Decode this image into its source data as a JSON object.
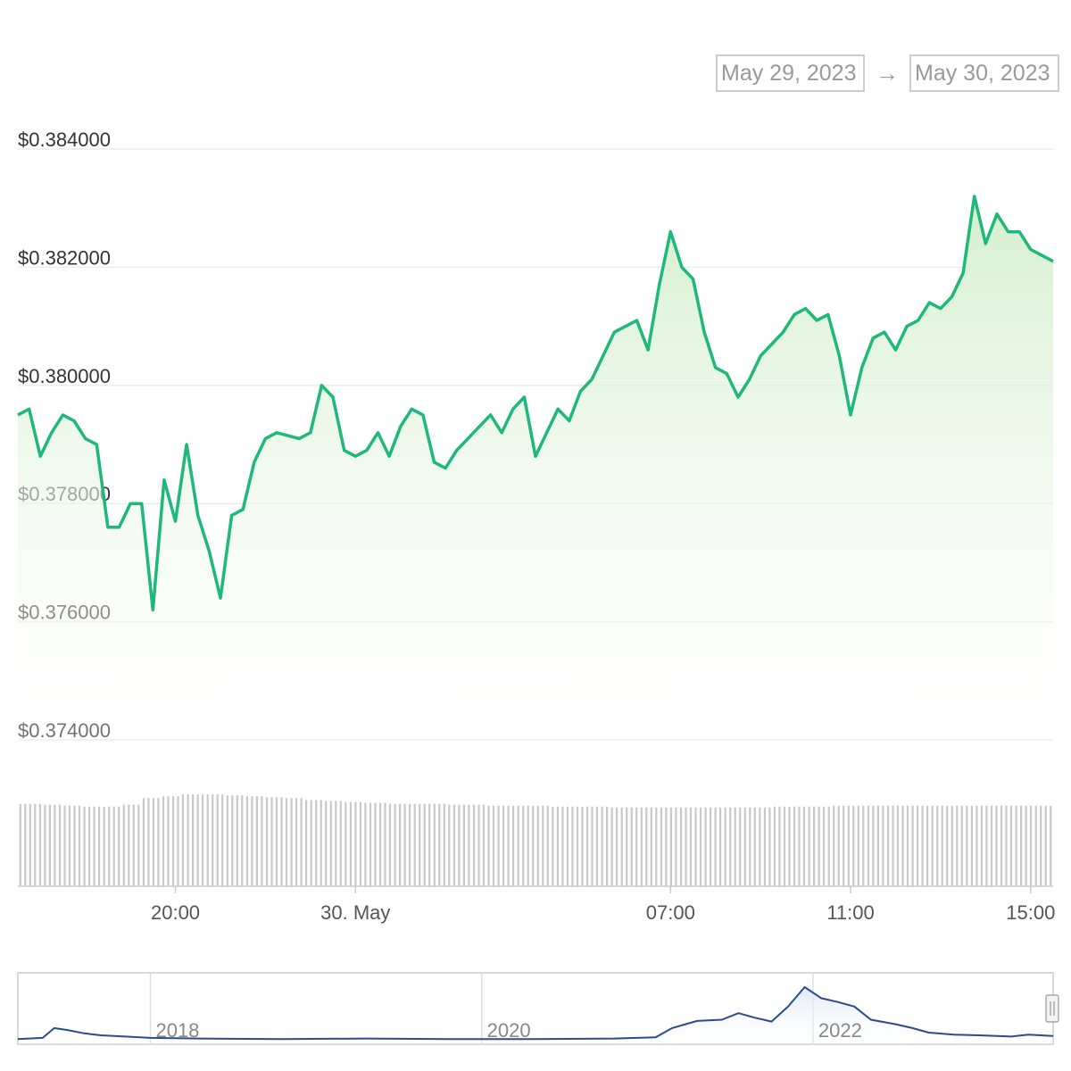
{
  "date_range": {
    "from": "May 29, 2023",
    "separator": "→",
    "to": "May 30, 2023"
  },
  "colors": {
    "line": "#1db87a",
    "area_top": "#d4f0cd",
    "navigator_line": "#2c4a8e",
    "volume_bar": "#c8c8c8"
  },
  "chart_data": {
    "type": "line",
    "title": "",
    "ylabel": "",
    "xlabel": "",
    "ylim": [
      0.374,
      0.384
    ],
    "y_ticks": [
      {
        "value": 0.384,
        "label": "$0.384000"
      },
      {
        "value": 0.382,
        "label": "$0.382000"
      },
      {
        "value": 0.38,
        "label": "$0.380000"
      },
      {
        "value": 0.378,
        "label": "$0.378000"
      },
      {
        "value": 0.376,
        "label": "$0.376000"
      },
      {
        "value": 0.374,
        "label": "$0.374000"
      }
    ],
    "x_range": [
      "2023-05-29T16:30",
      "2023-05-30T15:30"
    ],
    "x_ticks": [
      {
        "time": "2023-05-29T20:00",
        "label": "20:00"
      },
      {
        "time": "2023-05-30T00:00",
        "label": "30. May"
      },
      {
        "time": "2023-05-30T07:00",
        "label": "07:00"
      },
      {
        "time": "2023-05-30T11:00",
        "label": "11:00"
      },
      {
        "time": "2023-05-30T15:00",
        "label": "15:00"
      }
    ],
    "series": [
      {
        "x": [
          "2023-05-29T16:30",
          "2023-05-29T16:45",
          "2023-05-29T17:00",
          "2023-05-29T17:15",
          "2023-05-29T17:30",
          "2023-05-29T17:45",
          "2023-05-29T18:00",
          "2023-05-29T18:15",
          "2023-05-29T18:30",
          "2023-05-29T18:45",
          "2023-05-29T19:00",
          "2023-05-29T19:15",
          "2023-05-29T19:30",
          "2023-05-29T19:45",
          "2023-05-29T20:00",
          "2023-05-29T20:15",
          "2023-05-29T20:30",
          "2023-05-29T20:45",
          "2023-05-29T21:00",
          "2023-05-29T21:15",
          "2023-05-29T21:30",
          "2023-05-29T21:45",
          "2023-05-29T22:00",
          "2023-05-29T22:15",
          "2023-05-29T22:30",
          "2023-05-29T22:45",
          "2023-05-29T23:00",
          "2023-05-29T23:15",
          "2023-05-29T23:30",
          "2023-05-29T23:45",
          "2023-05-30T00:00",
          "2023-05-30T00:15",
          "2023-05-30T00:30",
          "2023-05-30T00:45",
          "2023-05-30T01:00",
          "2023-05-30T01:15",
          "2023-05-30T01:30",
          "2023-05-30T01:45",
          "2023-05-30T02:00",
          "2023-05-30T02:15",
          "2023-05-30T02:30",
          "2023-05-30T02:45",
          "2023-05-30T03:00",
          "2023-05-30T03:15",
          "2023-05-30T03:30",
          "2023-05-30T03:45",
          "2023-05-30T04:00",
          "2023-05-30T04:15",
          "2023-05-30T04:30",
          "2023-05-30T04:45",
          "2023-05-30T05:00",
          "2023-05-30T05:15",
          "2023-05-30T05:30",
          "2023-05-30T05:45",
          "2023-05-30T06:00",
          "2023-05-30T06:15",
          "2023-05-30T06:30",
          "2023-05-30T06:45",
          "2023-05-30T07:00",
          "2023-05-30T07:15",
          "2023-05-30T07:30",
          "2023-05-30T07:45",
          "2023-05-30T08:00",
          "2023-05-30T08:15",
          "2023-05-30T08:30",
          "2023-05-30T08:45",
          "2023-05-30T09:00",
          "2023-05-30T09:15",
          "2023-05-30T09:30",
          "2023-05-30T09:45",
          "2023-05-30T10:00",
          "2023-05-30T10:15",
          "2023-05-30T10:30",
          "2023-05-30T10:45",
          "2023-05-30T11:00",
          "2023-05-30T11:15",
          "2023-05-30T11:30",
          "2023-05-30T11:45",
          "2023-05-30T12:00",
          "2023-05-30T12:15",
          "2023-05-30T12:30",
          "2023-05-30T12:45",
          "2023-05-30T13:00",
          "2023-05-30T13:15",
          "2023-05-30T13:30",
          "2023-05-30T13:45",
          "2023-05-30T14:00",
          "2023-05-30T14:15",
          "2023-05-30T14:30",
          "2023-05-30T14:45",
          "2023-05-30T15:00",
          "2023-05-30T15:15",
          "2023-05-30T15:30"
        ],
        "values": [
          0.3795,
          0.3796,
          0.3788,
          0.3792,
          0.3795,
          0.3794,
          0.3791,
          0.379,
          0.3776,
          0.3776,
          0.378,
          0.378,
          0.3762,
          0.3784,
          0.3777,
          0.379,
          0.3778,
          0.3772,
          0.3764,
          0.3778,
          0.3779,
          0.3787,
          0.3791,
          0.3792,
          0.37915,
          0.3791,
          0.3792,
          0.38,
          0.3798,
          0.3789,
          0.3788,
          0.3789,
          0.3792,
          0.3788,
          0.3793,
          0.3796,
          0.3795,
          0.3787,
          0.3786,
          0.3789,
          0.3791,
          0.3793,
          0.3795,
          0.3792,
          0.3796,
          0.3798,
          0.3788,
          0.3792,
          0.3796,
          0.3794,
          0.3799,
          0.3801,
          0.3805,
          0.3809,
          0.381,
          0.3811,
          0.3806,
          0.3817,
          0.3826,
          0.382,
          0.3818,
          0.3809,
          0.3803,
          0.3802,
          0.3798,
          0.3801,
          0.3805,
          0.3807,
          0.3809,
          0.3812,
          0.3813,
          0.3811,
          0.3812,
          0.3805,
          0.3795,
          0.3803,
          0.3808,
          0.3809,
          0.3806,
          0.381,
          0.3811,
          0.3814,
          0.3813,
          0.3815,
          0.3819,
          0.3832,
          0.3824,
          0.3829,
          0.3826,
          0.3826,
          0.3823,
          0.3822,
          0.3821
        ]
      }
    ],
    "volume": {
      "values": [
        88,
        87,
        86,
        85,
        85,
        87,
        94,
        96,
        98,
        98,
        97,
        96,
        95,
        94,
        92,
        91,
        90,
        89,
        88,
        88,
        88,
        87,
        87,
        86,
        86,
        86,
        85,
        85,
        85,
        84,
        84,
        84,
        84,
        84,
        84,
        84,
        84,
        85,
        85,
        85,
        86,
        86,
        86,
        86,
        86,
        86,
        86,
        86,
        86,
        86,
        86
      ]
    },
    "navigator": {
      "x_ticks": [
        "2018",
        "2020",
        "2022"
      ],
      "x_range": [
        2017.2,
        2023.45
      ],
      "points": [
        [
          2017.2,
          0.05
        ],
        [
          2017.35,
          0.07
        ],
        [
          2017.42,
          0.22
        ],
        [
          2017.5,
          0.19
        ],
        [
          2017.6,
          0.14
        ],
        [
          2017.7,
          0.11
        ],
        [
          2017.85,
          0.09
        ],
        [
          2018.0,
          0.07
        ],
        [
          2018.3,
          0.06
        ],
        [
          2018.8,
          0.05
        ],
        [
          2019.3,
          0.06
        ],
        [
          2019.8,
          0.05
        ],
        [
          2020.3,
          0.05
        ],
        [
          2020.8,
          0.06
        ],
        [
          2021.05,
          0.08
        ],
        [
          2021.15,
          0.22
        ],
        [
          2021.3,
          0.33
        ],
        [
          2021.45,
          0.35
        ],
        [
          2021.55,
          0.45
        ],
        [
          2021.65,
          0.38
        ],
        [
          2021.75,
          0.32
        ],
        [
          2021.85,
          0.55
        ],
        [
          2021.95,
          0.85
        ],
        [
          2022.05,
          0.68
        ],
        [
          2022.15,
          0.62
        ],
        [
          2022.25,
          0.55
        ],
        [
          2022.35,
          0.35
        ],
        [
          2022.5,
          0.28
        ],
        [
          2022.6,
          0.22
        ],
        [
          2022.7,
          0.15
        ],
        [
          2022.85,
          0.12
        ],
        [
          2023.0,
          0.11
        ],
        [
          2023.2,
          0.09
        ],
        [
          2023.3,
          0.12
        ],
        [
          2023.45,
          0.1
        ]
      ]
    }
  }
}
